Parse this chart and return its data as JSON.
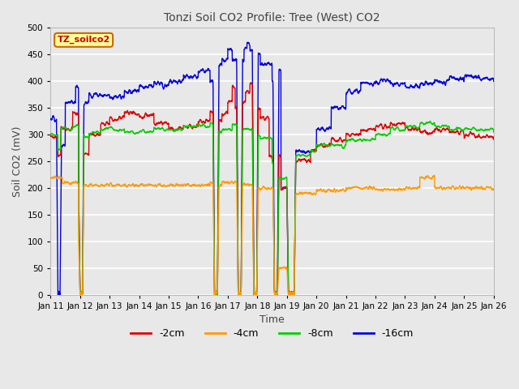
{
  "title": "Tonzi Soil CO2 Profile: Tree (West) CO2",
  "xlabel": "Time",
  "ylabel": "Soil CO2 (mV)",
  "ylim": [
    0,
    500
  ],
  "yticks": [
    0,
    50,
    100,
    150,
    200,
    250,
    300,
    350,
    400,
    450,
    500
  ],
  "annotation_text": "TZ_soilco2",
  "annotation_color": "#cc0000",
  "annotation_bg": "#ffff99",
  "annotation_border": "#cc6600",
  "colors": {
    "-2cm": "#dd0000",
    "-4cm": "#ff9900",
    "-8cm": "#00cc00",
    "-16cm": "#0000dd"
  },
  "background_color": "#e8e8e8",
  "plot_bg_color": "#e8e8e8",
  "grid_color": "#ffffff",
  "x_labels": [
    "Jan 11",
    "Jan 12",
    "Jan 13",
    "Jan 14",
    "Jan 15",
    "Jan 16",
    "Jan 17",
    "Jan 18",
    "Jan 19",
    "Jan 20",
    "Jan 21",
    "Jan 22",
    "Jan 23",
    "Jan 24",
    "Jan 25",
    "Jan 26"
  ],
  "n_points": 3000
}
